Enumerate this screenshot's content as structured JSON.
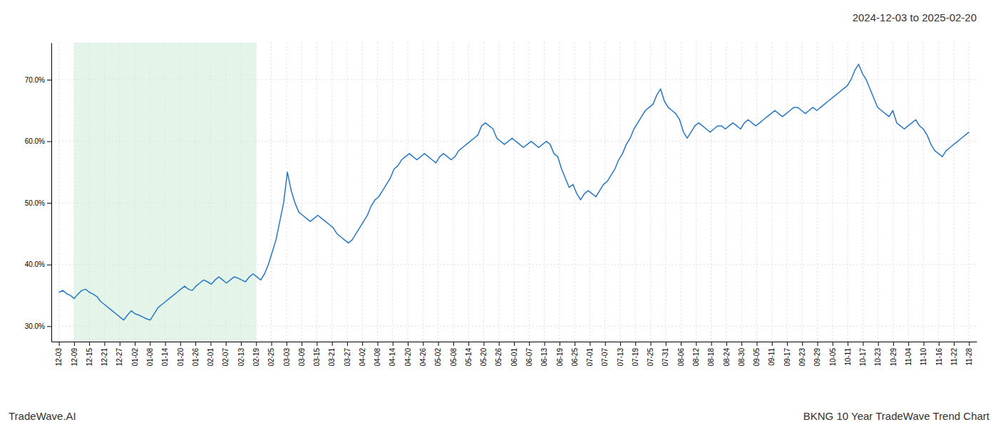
{
  "chart_data": {
    "type": "line",
    "title": "2024-12-03 to 2025-02-20",
    "annotations": [
      "TradeWave.AI",
      "BKNG 10 Year TradeWave Trend Chart"
    ],
    "color": "#2878c8",
    "grid": true,
    "highlight": {
      "x": [
        1,
        13
      ],
      "color": "#d4edda"
    },
    "xlim": [
      -0.5,
      60.5
    ],
    "xticks": [
      {
        "value": 0,
        "label": "12-03"
      },
      {
        "value": 1,
        "label": "12-09"
      },
      {
        "value": 2,
        "label": "12-15"
      },
      {
        "value": 3,
        "label": "12-21"
      },
      {
        "value": 4,
        "label": "12-27"
      },
      {
        "value": 5,
        "label": "01-02"
      },
      {
        "value": 6,
        "label": "01-08"
      },
      {
        "value": 7,
        "label": "01-14"
      },
      {
        "value": 8,
        "label": "01-20"
      },
      {
        "value": 9,
        "label": "01-26"
      },
      {
        "value": 10,
        "label": "02-01"
      },
      {
        "value": 11,
        "label": "02-07"
      },
      {
        "value": 12,
        "label": "02-13"
      },
      {
        "value": 13,
        "label": "02-19"
      },
      {
        "value": 14,
        "label": "02-25"
      },
      {
        "value": 15,
        "label": "03-03"
      },
      {
        "value": 16,
        "label": "03-09"
      },
      {
        "value": 17,
        "label": "03-15"
      },
      {
        "value": 18,
        "label": "03-21"
      },
      {
        "value": 19,
        "label": "03-27"
      },
      {
        "value": 20,
        "label": "04-02"
      },
      {
        "value": 21,
        "label": "04-08"
      },
      {
        "value": 22,
        "label": "04-14"
      },
      {
        "value": 23,
        "label": "04-20"
      },
      {
        "value": 24,
        "label": "04-26"
      },
      {
        "value": 25,
        "label": "05-02"
      },
      {
        "value": 26,
        "label": "05-08"
      },
      {
        "value": 27,
        "label": "05-14"
      },
      {
        "value": 28,
        "label": "05-20"
      },
      {
        "value": 29,
        "label": "05-26"
      },
      {
        "value": 30,
        "label": "06-01"
      },
      {
        "value": 31,
        "label": "06-07"
      },
      {
        "value": 32,
        "label": "06-13"
      },
      {
        "value": 33,
        "label": "06-19"
      },
      {
        "value": 34,
        "label": "06-25"
      },
      {
        "value": 35,
        "label": "07-01"
      },
      {
        "value": 36,
        "label": "07-07"
      },
      {
        "value": 37,
        "label": "07-13"
      },
      {
        "value": 38,
        "label": "07-19"
      },
      {
        "value": 39,
        "label": "07-25"
      },
      {
        "value": 40,
        "label": "07-31"
      },
      {
        "value": 41,
        "label": "08-06"
      },
      {
        "value": 42,
        "label": "08-12"
      },
      {
        "value": 43,
        "label": "08-18"
      },
      {
        "value": 44,
        "label": "08-24"
      },
      {
        "value": 45,
        "label": "08-30"
      },
      {
        "value": 46,
        "label": "09-05"
      },
      {
        "value": 47,
        "label": "09-11"
      },
      {
        "value": 48,
        "label": "09-17"
      },
      {
        "value": 49,
        "label": "09-23"
      },
      {
        "value": 50,
        "label": "09-29"
      },
      {
        "value": 51,
        "label": "10-05"
      },
      {
        "value": 52,
        "label": "10-11"
      },
      {
        "value": 53,
        "label": "10-17"
      },
      {
        "value": 54,
        "label": "10-23"
      },
      {
        "value": 55,
        "label": "10-29"
      },
      {
        "value": 56,
        "label": "11-04"
      },
      {
        "value": 57,
        "label": "11-10"
      },
      {
        "value": 58,
        "label": "11-16"
      },
      {
        "value": 59,
        "label": "11-22"
      },
      {
        "value": 60,
        "label": "11-28"
      }
    ],
    "ylim": [
      27.5,
      76.0
    ],
    "yticks": [
      {
        "value": 30.0,
        "label": "30.0%"
      },
      {
        "value": 40.0,
        "label": "40.0%"
      },
      {
        "value": 50.0,
        "label": "50.0%"
      },
      {
        "value": 60.0,
        "label": "60.0%"
      },
      {
        "value": 70.0,
        "label": "70.0%"
      }
    ],
    "x": [
      0,
      0.2510460251,
      0.5020920502,
      0.7531380753,
      1.0041841004,
      1.2552301255,
      1.5062761506,
      1.7573221757,
      2.0083682008,
      2.2594142259,
      2.510460251,
      2.7615062761,
      3.0125523012,
      3.2635983263,
      3.5146443514,
      3.7656903765,
      4.0167364016,
      4.2677824267,
      4.5188284518,
      4.7698744769,
      5.020920502,
      5.2719665271,
      5.5230125523,
      5.7740585774,
      6.0251046025,
      6.2761506276,
      6.5271966527,
      6.7782426778,
      7.0292887029,
      7.280334728,
      7.5313807531,
      7.7824267782,
      8.0334728033,
      8.2845188284,
      8.5355648535,
      8.7866108786,
      9.0376569037,
      9.2887029288,
      9.5397489539,
      9.790794979,
      10.0418410041,
      10.2928870292,
      10.5439330543,
      10.7949790794,
      11.0460251046,
      11.2970711297,
      11.5481171548,
      11.7991631799,
      12.050209205,
      12.3012552301,
      12.5523012552,
      12.8033472803,
      13.0543933054,
      13.3054393305,
      13.5564853556,
      13.8075313807,
      14.0585774058,
      14.3096234309,
      14.560669456,
      14.8117154811,
      15.0627615062,
      15.3138075313,
      15.5648535564,
      15.8158995815,
      16.0669456066,
      16.3179916317,
      16.5690376569,
      16.820083682,
      17.0711297071,
      17.3221757322,
      17.5732217573,
      17.8242677824,
      18.0753138075,
      18.3263598326,
      18.5774058577,
      18.8284518828,
      19.0794979079,
      19.330543933,
      19.5815899581,
      19.8326359832,
      20.0836820083,
      20.3347280334,
      20.5857740585,
      20.8368200836,
      21.0878661087,
      21.3389121338,
      21.5899581589,
      21.8410041841,
      22.0920502092,
      22.3430962343,
      22.5941422594,
      22.8451882845,
      23.0962343096,
      23.3472803347,
      23.5983263598,
      23.8493723849,
      24.10041841,
      24.3514644351,
      24.6025104602,
      24.8535564853,
      25.1046025104,
      25.3556485355,
      25.6066945606,
      25.8577405857,
      26.1087866108,
      26.3598326359,
      26.610878661,
      26.8619246861,
      27.1129707112,
      27.3640167364,
      27.6150627615,
      27.8661087866,
      28.1171548117,
      28.3682008368,
      28.6192468619,
      28.870292887,
      29.1213389121,
      29.3723849372,
      29.6234309623,
      29.8744769874,
      30.1255230125,
      30.3765690376,
      30.6276150627,
      30.8786610878,
      31.1297071129,
      31.380753138,
      31.6317991631,
      31.8828451882,
      32.1338912133,
      32.3849372384,
      32.6359832635,
      32.8870292887,
      33.1380753138,
      33.3891213389,
      33.640167364,
      33.8912133891,
      34.1422594142,
      34.3933054393,
      34.6443514644,
      34.8953974895,
      35.1464435146,
      35.3974895397,
      35.6485355648,
      35.8995815899,
      36.150627615,
      36.4016736401,
      36.6527196652,
      36.9037656903,
      37.1548117154,
      37.4058577405,
      37.6569037656,
      37.9079497907,
      38.1589958158,
      38.410041841,
      38.6610878661,
      38.9121338912,
      39.1631799163,
      39.4142259414,
      39.6652719665,
      39.9163179916,
      40.1673640167,
      40.4184100418,
      40.6694560669,
      40.920502092,
      41.1715481171,
      41.4225941422,
      41.6736401673,
      41.9246861924,
      42.1757322175,
      42.4267782426,
      42.6778242677,
      42.9288702928,
      43.1799163179,
      43.430962343,
      43.6820083682,
      43.9330543933,
      44.1841004184,
      44.4351464435,
      44.6861924686,
      44.9372384937,
      45.1882845188,
      45.4393305439,
      45.690376569,
      45.9414225941,
      46.1924686192,
      46.4435146443,
      46.6945606694,
      46.9456066945,
      47.1966527196,
      47.4476987447,
      47.6987447698,
      47.9497907949,
      48.20083682,
      48.4518828451,
      48.7029288702,
      48.9539748953,
      49.2050209205,
      49.4560669456,
      49.7071129707,
      49.9581589958,
      50.2092050209,
      50.460251046,
      50.7112970711,
      50.9623430962,
      51.2133891213,
      51.4644351464,
      51.7154811715,
      51.9665271966,
      52.2175732217,
      52.4686192468,
      52.7196652719,
      52.970711297,
      53.2217573221,
      53.4728033472,
      53.7238493723,
      53.9748953974,
      54.2259414225,
      54.4769874476,
      54.7280334728,
      54.9790794979,
      55.230125523,
      55.4811715481,
      55.7322175732,
      55.9832635983,
      56.2343096234,
      56.4853556485,
      56.7364016736,
      56.9874476987,
      57.2384937238,
      57.4895397489,
      57.740585774,
      57.9916317991,
      58.2426778242,
      58.4937238493,
      58.7447698744,
      58.9958158995,
      59.2468619246,
      59.4979079497,
      59.7489539748,
      60
    ],
    "values": [
      35.5,
      35.8,
      35.3,
      35.0,
      34.5,
      35.2,
      35.8,
      36.0,
      35.5,
      35.2,
      34.8,
      34.0,
      33.5,
      33.0,
      32.5,
      32.0,
      31.5,
      31.0,
      31.8,
      32.5,
      32.0,
      31.8,
      31.5,
      31.2,
      31.0,
      32.0,
      33.0,
      33.5,
      34.0,
      34.5,
      35.0,
      35.5,
      36.0,
      36.5,
      36.0,
      35.8,
      36.5,
      37.0,
      37.5,
      37.2,
      36.8,
      37.5,
      38.0,
      37.5,
      37.0,
      37.5,
      38.0,
      37.8,
      37.5,
      37.2,
      38.0,
      38.5,
      38.0,
      37.5,
      38.5,
      40.0,
      42.0,
      44.0,
      47.0,
      50.0,
      55.0,
      52.0,
      50.0,
      48.5,
      48.0,
      47.5,
      47.0,
      47.5,
      48.0,
      47.5,
      47.0,
      46.5,
      46.0,
      45.0,
      44.5,
      44.0,
      43.5,
      44.0,
      45.0,
      46.0,
      47.0,
      48.0,
      49.5,
      50.5,
      51.0,
      52.0,
      53.0,
      54.0,
      55.5,
      56.0,
      57.0,
      57.5,
      58.0,
      57.5,
      57.0,
      57.5,
      58.0,
      57.5,
      57.0,
      56.5,
      57.5,
      58.0,
      57.5,
      57.0,
      57.5,
      58.5,
      59.0,
      59.5,
      60.0,
      60.5,
      61.0,
      62.5,
      63.0,
      62.5,
      62.0,
      60.5,
      60.0,
      59.5,
      60.0,
      60.5,
      60.0,
      59.5,
      59.0,
      59.5,
      60.0,
      59.5,
      59.0,
      59.5,
      60.0,
      59.5,
      58.0,
      57.5,
      55.5,
      54.0,
      52.5,
      53.0,
      51.5,
      50.5,
      51.5,
      52.0,
      51.5,
      51.0,
      52.0,
      53.0,
      53.5,
      54.5,
      55.5,
      57.0,
      58.0,
      59.5,
      60.5,
      62.0,
      63.0,
      64.0,
      65.0,
      65.5,
      66.0,
      67.5,
      68.5,
      66.5,
      65.5,
      65.0,
      64.5,
      63.5,
      61.5,
      60.5,
      61.5,
      62.5,
      63.0,
      62.5,
      62.0,
      61.5,
      62.0,
      62.5,
      62.5,
      62.0,
      62.5,
      63.0,
      62.5,
      62.0,
      63.0,
      63.5,
      63.0,
      62.5,
      63.0,
      63.5,
      64.0,
      64.5,
      65.0,
      64.5,
      64.0,
      64.5,
      65.0,
      65.5,
      65.5,
      65.0,
      64.5,
      65.0,
      65.5,
      65.0,
      65.5,
      66.0,
      66.5,
      67.0,
      67.5,
      68.0,
      68.5,
      69.0,
      70.0,
      71.5,
      72.5,
      71.0,
      70.0,
      68.5,
      67.0,
      65.5,
      65.0,
      64.5,
      64.0,
      65.0,
      63.0,
      62.5,
      62.0,
      62.5,
      63.0,
      63.5,
      62.5,
      62.0,
      61.0,
      59.5,
      58.5,
      58.0,
      57.5,
      58.5,
      59.0,
      59.5,
      60.0,
      60.5,
      61.0,
      61.5
    ]
  }
}
